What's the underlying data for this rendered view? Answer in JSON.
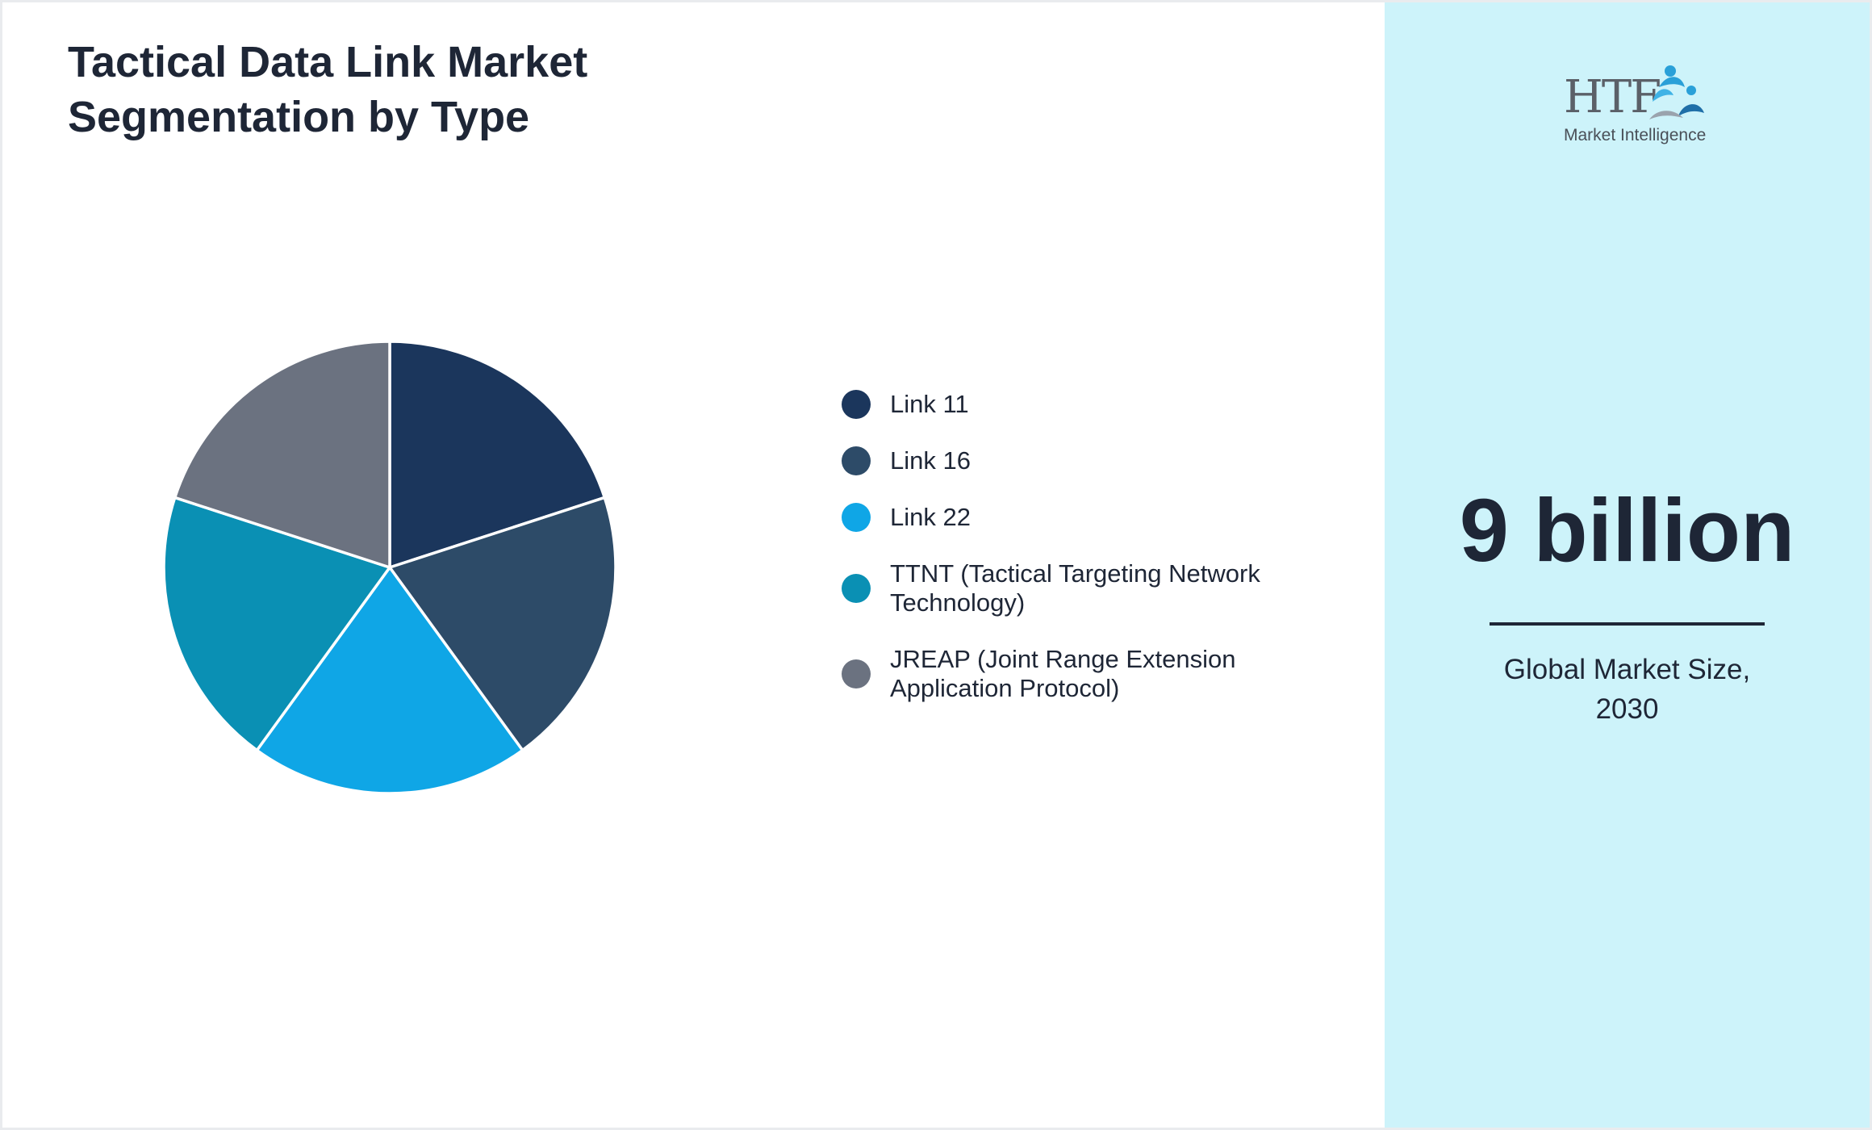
{
  "chart_data": {
    "type": "pie",
    "title": "Tactical Data Link Market Segmentation by Type",
    "categories": [
      "Link 11",
      "Link 16",
      "Link 22",
      "TTNT (Tactical Targeting Network Technology)",
      "JREAP (Joint Range Extension Application Protocol)"
    ],
    "values": [
      20,
      20,
      20,
      20,
      20
    ],
    "colors": [
      "#1b365c",
      "#2d4b68",
      "#0fa6e6",
      "#0a90b4",
      "#6b7280"
    ],
    "legend_position": "right"
  },
  "header": {
    "title_line1": "Tactical Data Link Market",
    "title_line2": "Segmentation by Type"
  },
  "legend": {
    "items": [
      {
        "label": "Link 11",
        "color": "#1b365c"
      },
      {
        "label": "Link 16",
        "color": "#2d4b68"
      },
      {
        "label": "Link 22",
        "color": "#0fa6e6"
      },
      {
        "label_line1": "TTNT (Tactical Targeting Network",
        "label_line2": "Technology)",
        "color": "#0a90b4"
      },
      {
        "label_line1": "JREAP (Joint Range Extension",
        "label_line2": "Application Protocol)",
        "color": "#6b7280"
      }
    ]
  },
  "sidebar": {
    "logo_text": "HTF",
    "logo_subtext": "Market Intelligence",
    "market_size_value": "9 billion",
    "market_size_caption_line1": "Global Market Size,",
    "market_size_caption_line2": "2030",
    "background_color": "#cdf3fa"
  }
}
